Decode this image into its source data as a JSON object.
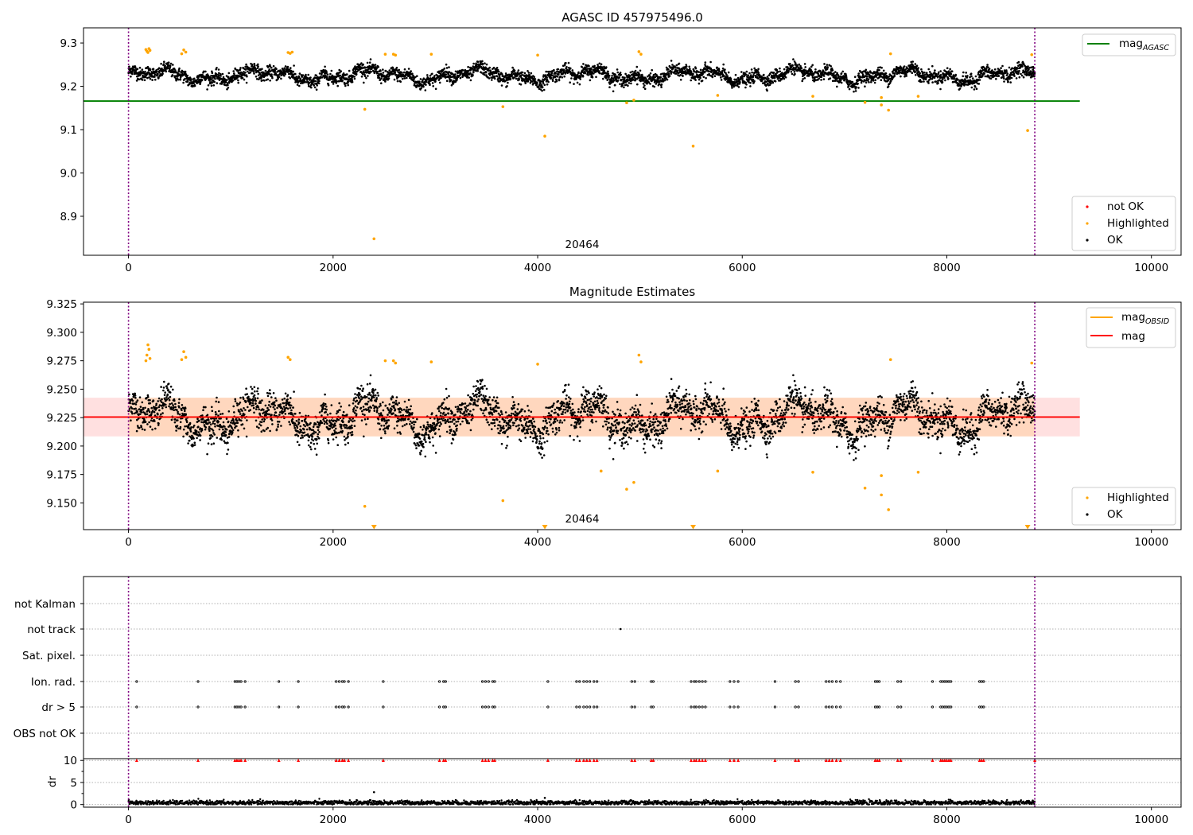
{
  "chart_data": [
    {
      "type": "scatter",
      "title": "AGASC ID 457975496.0",
      "xlim": [
        -440,
        10290
      ],
      "ylim": [
        8.81,
        9.335
      ],
      "x_ticks": [
        0,
        2000,
        4000,
        6000,
        8000,
        10000
      ],
      "y_ticks": [
        8.9,
        9.0,
        9.1,
        9.2,
        9.3
      ],
      "y_tick_labels": [
        "8.9",
        "9.0",
        "9.1",
        "9.2",
        "9.3"
      ],
      "obsid_annotation": {
        "text": "20464",
        "x": 4430,
        "y": 8.825
      },
      "obs_boundaries": [
        0,
        8860
      ],
      "mag_agasc": {
        "value": 9.166,
        "x_range": [
          -440,
          9300
        ]
      },
      "legend_upper": {
        "label": "mag",
        "subscript": "AGASC",
        "color": "#008000",
        "position": "upper right"
      },
      "legend_lower": {
        "position": "lower right",
        "entries": [
          {
            "label": "not OK",
            "color": "#ff0000"
          },
          {
            "label": "Highlighted",
            "color": "#ffa500"
          },
          {
            "label": "OK",
            "color": "#000000"
          }
        ]
      },
      "highlighted_points": [
        [
          170,
          9.285
        ],
        [
          180,
          9.281
        ],
        [
          190,
          9.278
        ],
        [
          200,
          9.287
        ],
        [
          210,
          9.283
        ],
        [
          520,
          9.275
        ],
        [
          540,
          9.284
        ],
        [
          560,
          9.279
        ],
        [
          1560,
          9.278
        ],
        [
          1580,
          9.276
        ],
        [
          1600,
          9.279
        ],
        [
          2310,
          9.147
        ],
        [
          2400,
          8.848
        ],
        [
          2510,
          9.274
        ],
        [
          2590,
          9.274
        ],
        [
          2610,
          9.272
        ],
        [
          2960,
          9.274
        ],
        [
          3660,
          9.153
        ],
        [
          4000,
          9.272
        ],
        [
          4070,
          9.085
        ],
        [
          4870,
          9.162
        ],
        [
          4940,
          9.168
        ],
        [
          4990,
          9.28
        ],
        [
          5010,
          9.274
        ],
        [
          5520,
          9.062
        ],
        [
          5760,
          9.179
        ],
        [
          6690,
          9.177
        ],
        [
          7200,
          9.163
        ],
        [
          7360,
          9.174
        ],
        [
          7360,
          9.157
        ],
        [
          7430,
          9.145
        ],
        [
          7450,
          9.275
        ],
        [
          7720,
          9.177
        ],
        [
          8790,
          9.098
        ],
        [
          8830,
          9.273
        ]
      ],
      "ok_series": {
        "x_range": [
          0,
          8860
        ],
        "baseline": 9.225,
        "scatter": 0.013
      }
    },
    {
      "type": "scatter",
      "title": "Magnitude Estimates",
      "xlim": [
        -440,
        10290
      ],
      "ylim": [
        9.1265,
        9.3265
      ],
      "x_ticks": [
        0,
        2000,
        4000,
        6000,
        8000,
        10000
      ],
      "y_ticks": [
        9.15,
        9.175,
        9.2,
        9.225,
        9.25,
        9.275,
        9.3,
        9.325
      ],
      "y_tick_labels": [
        "9.150",
        "9.175",
        "9.200",
        "9.225",
        "9.250",
        "9.275",
        "9.300",
        "9.325"
      ],
      "obsid_annotation": {
        "text": "20464",
        "x": 4430,
        "y": 9.13
      },
      "obs_boundaries": [
        0,
        8860
      ],
      "mag_line": {
        "value": 9.2255,
        "x_range": [
          -440,
          9300
        ],
        "color": "#ff0000"
      },
      "mag_obsid": {
        "value": 9.2255,
        "x_range": [
          0,
          8860
        ],
        "color": "#ffa500"
      },
      "mag_band": {
        "low": 9.2085,
        "high": 9.2425,
        "x_range": [
          -440,
          9300
        ]
      },
      "legend_upper": {
        "position": "upper right",
        "entries": [
          {
            "label": "mag",
            "subscript": "OBSID",
            "color": "#ffa500"
          },
          {
            "label": "mag",
            "subscript": "",
            "color": "#ff0000"
          }
        ]
      },
      "legend_lower": {
        "position": "lower right",
        "entries": [
          {
            "label": "Highlighted",
            "color": "#ffa500"
          },
          {
            "label": "OK",
            "color": "#000000"
          }
        ]
      },
      "highlighted_points": [
        [
          170,
          9.275
        ],
        [
          180,
          9.28
        ],
        [
          190,
          9.289
        ],
        [
          200,
          9.285
        ],
        [
          210,
          9.277
        ],
        [
          520,
          9.276
        ],
        [
          540,
          9.283
        ],
        [
          560,
          9.278
        ],
        [
          1560,
          9.278
        ],
        [
          1580,
          9.276
        ],
        [
          2310,
          9.147
        ],
        [
          2510,
          9.275
        ],
        [
          2590,
          9.275
        ],
        [
          2610,
          9.273
        ],
        [
          2960,
          9.274
        ],
        [
          3660,
          9.152
        ],
        [
          4000,
          9.272
        ],
        [
          4620,
          9.178
        ],
        [
          4870,
          9.162
        ],
        [
          4940,
          9.168
        ],
        [
          4990,
          9.28
        ],
        [
          5010,
          9.274
        ],
        [
          5760,
          9.178
        ],
        [
          6690,
          9.177
        ],
        [
          7200,
          9.163
        ],
        [
          7360,
          9.174
        ],
        [
          7360,
          9.157
        ],
        [
          7430,
          9.144
        ],
        [
          7450,
          9.276
        ],
        [
          7720,
          9.177
        ],
        [
          8830,
          9.273
        ]
      ],
      "offscale_markers_x": [
        2400,
        4070,
        5520,
        8790
      ],
      "ok_series": {
        "x_range": [
          0,
          8860
        ],
        "baseline": 9.225,
        "scatter": 0.014
      }
    },
    {
      "type": "scatter",
      "title": "",
      "xlim": [
        -440,
        10290
      ],
      "x_ticks": [
        0,
        2000,
        4000,
        6000,
        8000,
        10000
      ],
      "obs_boundaries": [
        0,
        8860
      ],
      "flag_rows": [
        "not Kalman",
        "not track",
        "Sat. pixel.",
        "Ion. rad.",
        "dr > 5",
        "OBS not OK"
      ],
      "not_track_times": [
        4810
      ],
      "ion_rad_times": [
        80,
        680,
        1040,
        1060,
        1080,
        1100,
        1140,
        1470,
        1660,
        2030,
        2060,
        2090,
        2110,
        2150,
        2490,
        3040,
        3080,
        3100,
        3460,
        3490,
        3520,
        3560,
        3580,
        4100,
        4380,
        4410,
        4450,
        4480,
        4510,
        4550,
        4580,
        4920,
        4950,
        5110,
        5130,
        5500,
        5530,
        5550,
        5580,
        5610,
        5640,
        5880,
        5920,
        5960,
        6320,
        6520,
        6550,
        6820,
        6850,
        6880,
        6920,
        6960,
        7300,
        7320,
        7340,
        7520,
        7550,
        7860,
        7940,
        7960,
        7980,
        8000,
        8020,
        8040,
        8320,
        8340,
        8360
      ],
      "dr_axis": {
        "ylabel": "dr",
        "ylim": [
          -0.6,
          10.4
        ],
        "y_ticks": [
          0,
          5,
          10
        ],
        "y_tick_labels": [
          "0",
          "5",
          "10"
        ]
      },
      "dr_capped_value": 10,
      "dr_outliers": [
        [
          2400,
          2.8
        ],
        [
          4070,
          1.5
        ],
        [
          8840,
          0.9
        ]
      ],
      "dr_series": {
        "x_range": [
          0,
          8860
        ],
        "baseline": 0.4,
        "scatter": 0.25
      }
    }
  ]
}
